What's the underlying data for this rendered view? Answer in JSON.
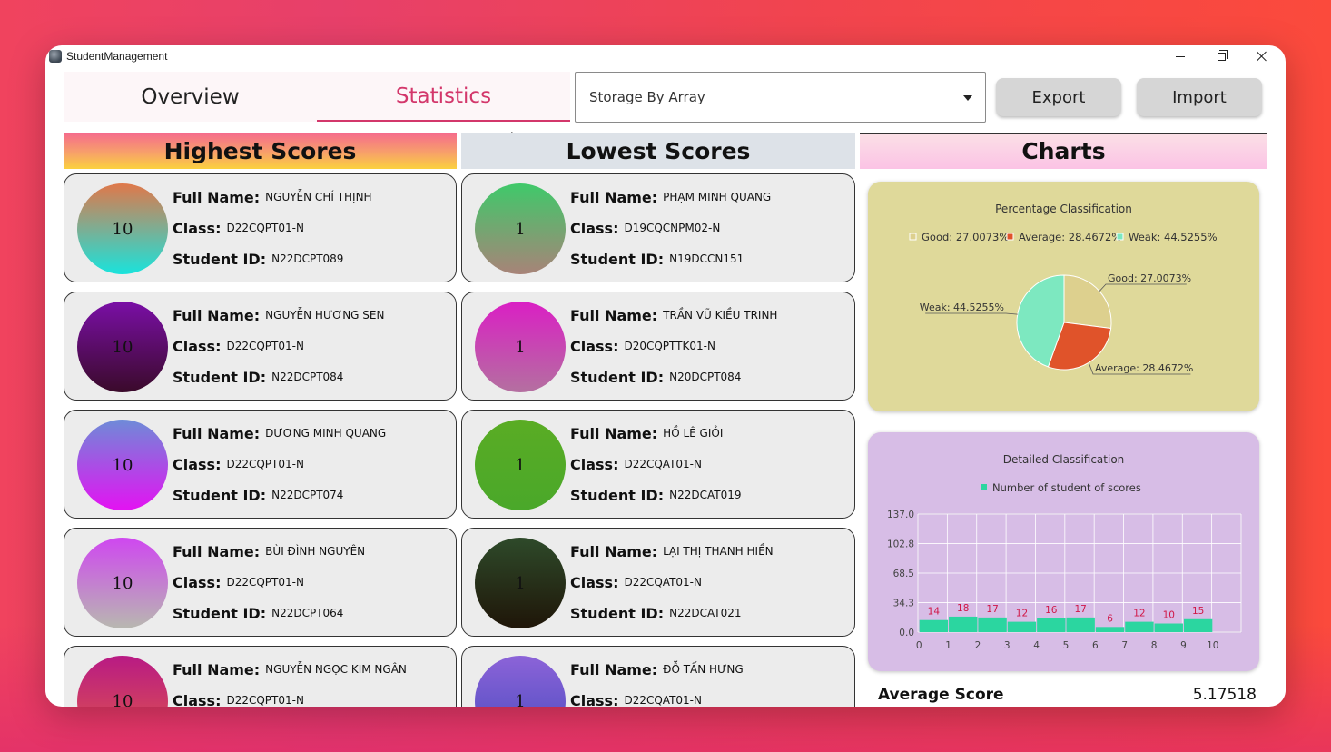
{
  "window": {
    "title": "StudentManagement"
  },
  "tabs": [
    {
      "label": "Overview",
      "active": false
    },
    {
      "label": "Statistics",
      "active": true
    }
  ],
  "storage": {
    "selected": "Storage By Array"
  },
  "buttons": {
    "export": "Export",
    "import": "Import"
  },
  "headers": {
    "highest": "Highest Scores",
    "lowest": "Lowest Scores",
    "charts": "Charts"
  },
  "labels": {
    "full_name": "Full Name:",
    "class": "Class:",
    "student_id": "Student ID:"
  },
  "highest": [
    {
      "score": "10",
      "name": "NGUYỄN CHÍ THỊNH",
      "class": "D22CQPT01-N",
      "id": "N22DCPT089",
      "colors": [
        "#e0784a",
        "#19e3dc"
      ]
    },
    {
      "score": "10",
      "name": "NGUYỄN HƯƠNG SEN",
      "class": "D22CQPT01-N",
      "id": "N22DCPT084",
      "colors": [
        "#7a0fa6",
        "#3a0a2a"
      ]
    },
    {
      "score": "10",
      "name": "DƯƠNG MINH QUANG",
      "class": "D22CQPT01-N",
      "id": "N22DCPT074",
      "colors": [
        "#6e8bd8",
        "#e412f2"
      ]
    },
    {
      "score": "10",
      "name": "BÙI ĐÌNH NGUYÊN",
      "class": "D22CQPT01-N",
      "id": "N22DCPT064",
      "colors": [
        "#cf47f0",
        "#b8b8b0"
      ]
    },
    {
      "score": "10",
      "name": "NGUYỄN NGỌC KIM NGÂN",
      "class": "D22CQPT01-N",
      "id": "",
      "colors": [
        "#b81a84",
        "#e0574a"
      ]
    }
  ],
  "lowest": [
    {
      "score": "1",
      "name": "PHẠM MINH QUANG",
      "class": "D19CQCNPM02-N",
      "id": "N19DCCN151",
      "colors": [
        "#3fc96a",
        "#a88378"
      ]
    },
    {
      "score": "1",
      "name": "TRẦN VŨ KIỀU TRINH",
      "class": "D20CQPTTK01-N",
      "id": "N20DCPT084",
      "colors": [
        "#da1fc4",
        "#b470a0"
      ]
    },
    {
      "score": "1",
      "name": "HỒ LÊ GIỎI",
      "class": "D22CQAT01-N",
      "id": "N22DCAT019",
      "colors": [
        "#5aac24",
        "#4aa82a"
      ]
    },
    {
      "score": "1",
      "name": "LẠI THỊ THANH HIỀN",
      "class": "D22CQAT01-N",
      "id": "N22DCAT021",
      "colors": [
        "#2e4a2a",
        "#1f1508"
      ]
    },
    {
      "score": "1",
      "name": "ĐỖ TẤN HƯNG",
      "class": "D22CQAT01-N",
      "id": "",
      "colors": [
        "#8c63d8",
        "#4a4cc0"
      ]
    }
  ],
  "chart_data": [
    {
      "type": "pie",
      "title": "Percentage Classification",
      "legend_position": "top",
      "categories": [
        "Good",
        "Average",
        "Weak"
      ],
      "values": [
        27.0073,
        28.4672,
        44.5255
      ],
      "legend": [
        "Good: 27.0073%",
        "Average: 28.4672%",
        "Weak: 44.5255%"
      ],
      "slice_labels": [
        "Good: 27.0073%",
        "Average: 28.4672%",
        "Weak: 44.5255%"
      ],
      "colors": [
        "#ddd08e",
        "#e0532a",
        "#7de8c0"
      ]
    },
    {
      "type": "bar",
      "title": "Detailed Classification",
      "legend_position": "top",
      "series": [
        {
          "name": "Number of student of scores",
          "values": [
            14,
            18,
            17,
            12,
            16,
            17,
            6,
            12,
            10,
            15
          ]
        }
      ],
      "x": [
        "0",
        "1",
        "2",
        "3",
        "4",
        "5",
        "6",
        "7",
        "8",
        "9",
        "10"
      ],
      "categories": [
        "1",
        "2",
        "3",
        "4",
        "5",
        "6",
        "7",
        "8",
        "9",
        "10"
      ],
      "yticks": [
        "137.0",
        "102.8",
        "68.5",
        "34.3",
        "0.0"
      ],
      "ylim": [
        0,
        137.0
      ],
      "grid": true,
      "bar_color": "#2bd6a0",
      "label_color": "#d01848"
    }
  ],
  "average": {
    "label": "Average Score",
    "value": "5.17518"
  }
}
